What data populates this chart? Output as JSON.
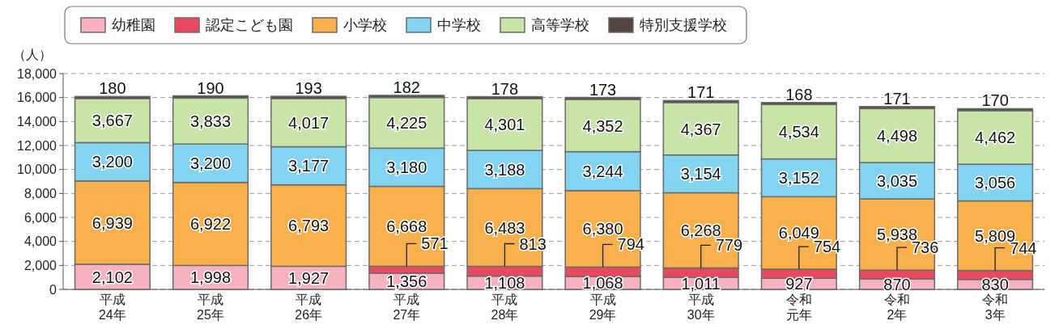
{
  "chart_data": {
    "type": "bar",
    "stacked": true,
    "ylabel": "（人）",
    "categories": [
      "平成24年",
      "平成25年",
      "平成26年",
      "平成27年",
      "平成28年",
      "平成29年",
      "平成30年",
      "令和元年",
      "令和2年",
      "令和3年"
    ],
    "series": [
      {
        "name": "幼稚園",
        "color": "#f6b2bf",
        "values": [
          2102,
          1998,
          1927,
          1356,
          1108,
          1068,
          1011,
          927,
          870,
          830
        ],
        "value_labels": [
          "2,102",
          "1,998",
          "1,927",
          "1,356",
          "1,108",
          "1,068",
          "1,011",
          "927",
          "870",
          "830"
        ]
      },
      {
        "name": "認定こども園",
        "color": "#e8495f",
        "values": [
          null,
          null,
          null,
          571,
          813,
          794,
          779,
          754,
          736,
          744
        ],
        "value_labels": [
          null,
          null,
          null,
          "571",
          "813",
          "794",
          "779",
          "754",
          "736",
          "744"
        ]
      },
      {
        "name": "小学校",
        "color": "#f8b04c",
        "values": [
          6939,
          6922,
          6793,
          6668,
          6483,
          6380,
          6268,
          6049,
          5938,
          5809
        ],
        "value_labels": [
          "6,939",
          "6,922",
          "6,793",
          "6,668",
          "6,483",
          "6,380",
          "6,268",
          "6,049",
          "5,938",
          "5,809"
        ]
      },
      {
        "name": "中学校",
        "color": "#83d4f1",
        "values": [
          3200,
          3200,
          3177,
          3180,
          3188,
          3244,
          3154,
          3152,
          3035,
          3056
        ],
        "value_labels": [
          "3,200",
          "3,200",
          "3,177",
          "3,180",
          "3,188",
          "3,244",
          "3,154",
          "3,152",
          "3,035",
          "3,056"
        ]
      },
      {
        "name": "高等学校",
        "color": "#c8e4a8",
        "values": [
          3667,
          3833,
          4017,
          4225,
          4301,
          4352,
          4367,
          4534,
          4498,
          4462
        ],
        "value_labels": [
          "3,667",
          "3,833",
          "4,017",
          "4,225",
          "4,301",
          "4,352",
          "4,367",
          "4,534",
          "4,498",
          "4,462"
        ]
      },
      {
        "name": "特別支援学校",
        "color": "#54463f",
        "values": [
          180,
          190,
          193,
          182,
          178,
          173,
          171,
          168,
          171,
          170
        ],
        "value_labels": [
          "180",
          "190",
          "193",
          "182",
          "178",
          "173",
          "171",
          "168",
          "171",
          "170"
        ]
      }
    ],
    "ylim": [
      0,
      18000
    ],
    "yticks": [
      0,
      {
        "value": 2000,
        "label": "2,000"
      },
      {
        "value": 4000,
        "label": "4,000"
      },
      {
        "value": 6000,
        "label": "6,000"
      },
      {
        "value": 8000,
        "label": "8,000"
      },
      {
        "value": 10000,
        "label": "10,000"
      },
      {
        "value": 12000,
        "label": "12,000"
      },
      {
        "value": 14000,
        "label": "14,000"
      },
      {
        "value": 16000,
        "label": "16,000"
      },
      {
        "value": 18000,
        "label": "18,000"
      }
    ],
    "grid": "y",
    "legend": "top"
  }
}
